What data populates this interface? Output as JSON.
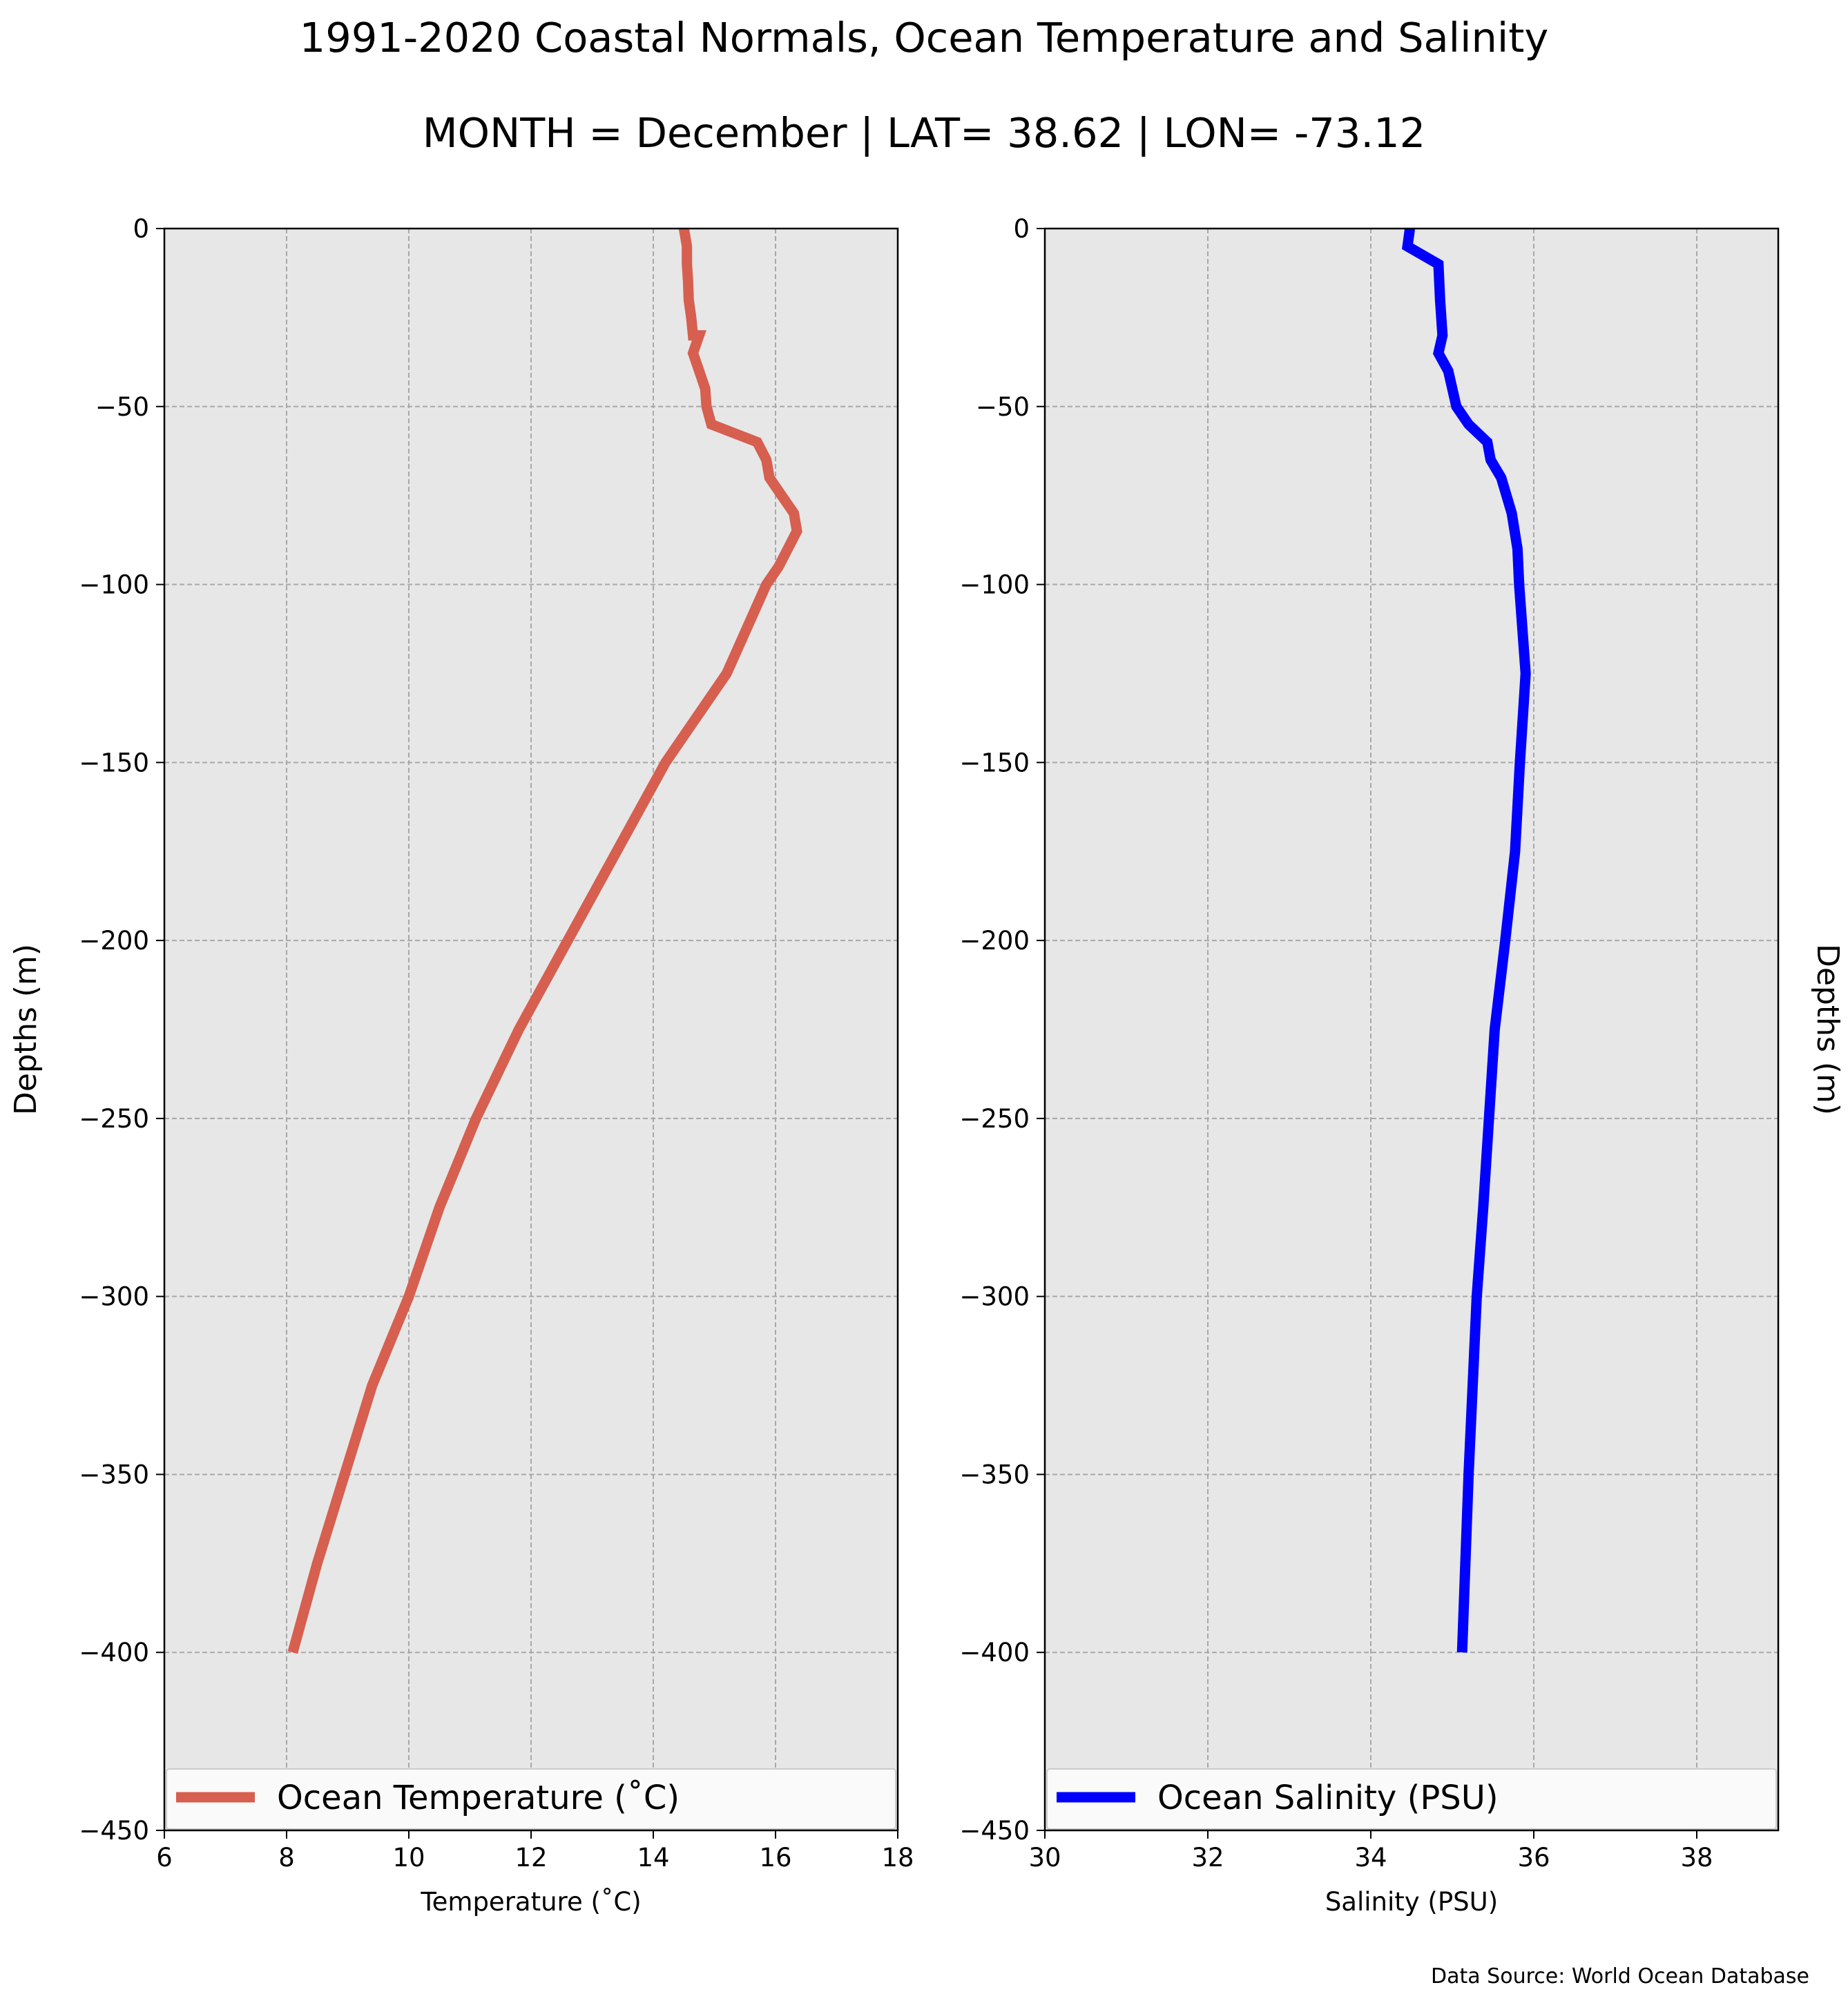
{
  "title": "1991-2020 Coastal Normals, Ocean Temperature and Salinity",
  "subtitle": "MONTH = December | LAT= 38.62 | LON= -73.12",
  "source_note": "Data Source: World Ocean Database",
  "chart_data": [
    {
      "type": "line",
      "xlabel": "Temperature (˚C)",
      "ylabel": "Depths (m)",
      "xlim": [
        6,
        18
      ],
      "ylim": [
        -450,
        0
      ],
      "xticks": [
        6,
        8,
        10,
        12,
        14,
        16,
        18
      ],
      "xtick_labels": [
        "6",
        "8",
        "10",
        "12",
        "14",
        "16",
        "18"
      ],
      "yticks": [
        0,
        -50,
        -100,
        -150,
        -200,
        -250,
        -300,
        -350,
        -400,
        -450
      ],
      "ytick_labels": [
        "0",
        "−50",
        "−100",
        "−150",
        "−200",
        "−250",
        "−300",
        "−350",
        "−400",
        "−450"
      ],
      "grid": true,
      "legend": "bottom",
      "series": [
        {
          "name": "Ocean Temperature (˚C)",
          "color": "#d65f4f",
          "points": [
            [
              14.5,
              0
            ],
            [
              14.55,
              -5
            ],
            [
              14.55,
              -10
            ],
            [
              14.57,
              -15
            ],
            [
              14.58,
              -20
            ],
            [
              14.62,
              -25
            ],
            [
              14.65,
              -30
            ],
            [
              14.75,
              -30
            ],
            [
              14.65,
              -35
            ],
            [
              14.75,
              -40
            ],
            [
              14.85,
              -45
            ],
            [
              14.87,
              -50
            ],
            [
              14.95,
              -55
            ],
            [
              15.7,
              -60
            ],
            [
              15.85,
              -65
            ],
            [
              15.9,
              -70
            ],
            [
              16.1,
              -75
            ],
            [
              16.3,
              -80
            ],
            [
              16.35,
              -85
            ],
            [
              16.05,
              -95
            ],
            [
              15.85,
              -100
            ],
            [
              15.2,
              -125
            ],
            [
              14.2,
              -150
            ],
            [
              13.4,
              -175
            ],
            [
              12.6,
              -200
            ],
            [
              11.8,
              -225
            ],
            [
              11.1,
              -250
            ],
            [
              10.5,
              -275
            ],
            [
              10.0,
              -300
            ],
            [
              9.4,
              -325
            ],
            [
              8.95,
              -350
            ],
            [
              8.5,
              -375
            ],
            [
              8.1,
              -400
            ]
          ]
        }
      ]
    },
    {
      "type": "line",
      "xlabel": "Salinity (PSU)",
      "ylabel": "Depths (m)",
      "xlim": [
        30,
        39
      ],
      "ylim": [
        -450,
        0
      ],
      "xticks": [
        30,
        32,
        34,
        36,
        38
      ],
      "xtick_labels": [
        "30",
        "32",
        "34",
        "36",
        "38"
      ],
      "yticks": [
        0,
        -50,
        -100,
        -150,
        -200,
        -250,
        -300,
        -350,
        -400,
        -450
      ],
      "ytick_labels": [
        "0",
        "−50",
        "−100",
        "−150",
        "−200",
        "−250",
        "−300",
        "−350",
        "−400",
        "−450"
      ],
      "grid": true,
      "legend": "bottom",
      "series": [
        {
          "name": "Ocean Salinity (PSU)",
          "color": "#0000ff",
          "points": [
            [
              34.48,
              0
            ],
            [
              34.45,
              -5
            ],
            [
              34.83,
              -10
            ],
            [
              34.85,
              -20
            ],
            [
              34.88,
              -30
            ],
            [
              34.83,
              -35
            ],
            [
              34.95,
              -40
            ],
            [
              35.0,
              -45
            ],
            [
              35.05,
              -50
            ],
            [
              35.2,
              -55
            ],
            [
              35.43,
              -60
            ],
            [
              35.47,
              -65
            ],
            [
              35.6,
              -70
            ],
            [
              35.73,
              -80
            ],
            [
              35.8,
              -90
            ],
            [
              35.82,
              -100
            ],
            [
              35.9,
              -125
            ],
            [
              35.83,
              -150
            ],
            [
              35.77,
              -175
            ],
            [
              35.65,
              -200
            ],
            [
              35.52,
              -225
            ],
            [
              35.45,
              -250
            ],
            [
              35.38,
              -275
            ],
            [
              35.3,
              -300
            ],
            [
              35.25,
              -325
            ],
            [
              35.2,
              -350
            ],
            [
              35.16,
              -375
            ],
            [
              35.12,
              -400
            ]
          ]
        }
      ]
    }
  ]
}
